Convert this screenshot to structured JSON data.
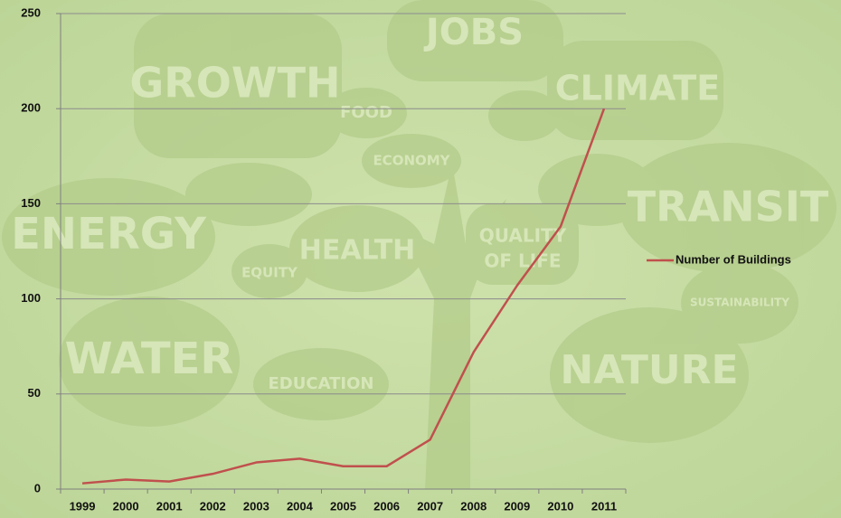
{
  "chart_data": {
    "type": "line",
    "categories": [
      "1999",
      "2000",
      "2001",
      "2002",
      "2003",
      "2004",
      "2005",
      "2006",
      "2007",
      "2008",
      "2009",
      "2010",
      "2011"
    ],
    "series": [
      {
        "name": "Number of Buildings",
        "color": "#c0504d",
        "values": [
          3,
          5,
          4,
          8,
          14,
          16,
          12,
          12,
          26,
          72,
          107,
          138,
          200
        ]
      }
    ],
    "ylim": [
      0,
      250
    ],
    "yticks": [
      0,
      50,
      100,
      150,
      200,
      250
    ],
    "grid": true,
    "legend": "right"
  },
  "background_words": [
    "GROWTH",
    "JOBS",
    "CLIMATE",
    "FOOD",
    "ECONOMY",
    "ENERGY",
    "HEALTH",
    "EQUITY",
    "QUALITY",
    "OF LIFE",
    "TRANSIT",
    "WATER",
    "EDUCATION",
    "NATURE",
    "SUSTAINABILITY"
  ]
}
